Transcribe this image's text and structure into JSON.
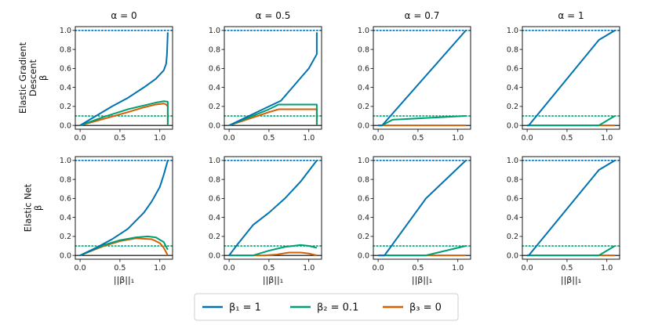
{
  "figure": {
    "col_titles": [
      "α = 0",
      "α = 0.5",
      "α = 0.7",
      "α = 1"
    ],
    "row_labels": [
      {
        "lines": [
          "Elastic Gradient",
          "Descent"
        ],
        "symbol": "β"
      },
      {
        "lines": [
          "Elastic Net"
        ],
        "symbol": "β"
      }
    ],
    "xlabel": "||β||₁",
    "legend": [
      {
        "label": "β₁ = 1",
        "color": "#0072b2"
      },
      {
        "label": "β₂ = 0.1",
        "color": "#009e73"
      },
      {
        "label": "β₃ = 0",
        "color": "#d55e00"
      }
    ],
    "colors": {
      "beta1": "#0072b2",
      "beta2": "#009e73",
      "beta3": "#d55e00"
    }
  },
  "chart_data": [
    {
      "type": "line",
      "row": 0,
      "col": 0,
      "title": "α = 0",
      "ylabel": "β",
      "xlim": [
        -0.06,
        1.16
      ],
      "ylim": [
        -0.04,
        1.04
      ],
      "xticks": [
        0.0,
        0.5,
        1.0
      ],
      "yticks": [
        0.0,
        0.2,
        0.4,
        0.6,
        0.8,
        1.0
      ],
      "hlines": [
        {
          "y": 1.0,
          "style": "dotted",
          "series": 0
        },
        {
          "y": 0.1,
          "style": "dotted",
          "series": 1
        },
        {
          "y": 0.0,
          "style": "solid-black"
        }
      ],
      "series": [
        {
          "name": "β₁",
          "x": [
            0,
            0.2,
            0.4,
            0.6,
            0.8,
            0.95,
            1.05,
            1.08,
            1.09,
            1.1
          ],
          "y": [
            0,
            0.1,
            0.2,
            0.29,
            0.4,
            0.49,
            0.58,
            0.65,
            0.75,
            0.98
          ]
        },
        {
          "name": "β₂",
          "x": [
            0,
            0.3,
            0.6,
            0.8,
            0.95,
            1.05,
            1.1,
            1.1
          ],
          "y": [
            0,
            0.09,
            0.17,
            0.21,
            0.24,
            0.255,
            0.25,
            0
          ]
        },
        {
          "name": "β₃",
          "x": [
            0,
            0.3,
            0.6,
            0.8,
            0.95,
            1.05,
            1.08,
            1.1,
            1.1
          ],
          "y": [
            0,
            0.07,
            0.14,
            0.19,
            0.22,
            0.23,
            0.22,
            0.2,
            0
          ]
        }
      ]
    },
    {
      "type": "line",
      "row": 0,
      "col": 1,
      "title": "α = 0.5",
      "ylabel": "β",
      "xlim": [
        -0.06,
        1.16
      ],
      "ylim": [
        -0.04,
        1.04
      ],
      "xticks": [
        0.0,
        0.5,
        1.0
      ],
      "yticks": [
        0.0,
        0.2,
        0.4,
        0.6,
        0.8,
        1.0
      ],
      "hlines": [
        {
          "y": 1.0,
          "style": "dotted",
          "series": 0
        },
        {
          "y": 0.1,
          "style": "dotted",
          "series": 1
        },
        {
          "y": 0.0,
          "style": "solid-black"
        }
      ],
      "series": [
        {
          "name": "β₁",
          "x": [
            0,
            0.5,
            0.65,
            1.0,
            1.08,
            1.1,
            1.1
          ],
          "y": [
            0,
            0.2,
            0.26,
            0.6,
            0.72,
            0.75,
            0.98
          ]
        },
        {
          "name": "β₂",
          "x": [
            0,
            0.5,
            0.62,
            1.1,
            1.1
          ],
          "y": [
            0,
            0.17,
            0.22,
            0.22,
            0
          ]
        },
        {
          "name": "β₃",
          "x": [
            0,
            0.5,
            0.62,
            1.1,
            1.1
          ],
          "y": [
            0,
            0.14,
            0.17,
            0.17,
            0
          ]
        }
      ]
    },
    {
      "type": "line",
      "row": 0,
      "col": 2,
      "title": "α = 0.7",
      "ylabel": "β",
      "xlim": [
        -0.06,
        1.16
      ],
      "ylim": [
        -0.04,
        1.04
      ],
      "xticks": [
        0.0,
        0.5,
        1.0
      ],
      "yticks": [
        0.0,
        0.2,
        0.4,
        0.6,
        0.8,
        1.0
      ],
      "hlines": [
        {
          "y": 1.0,
          "style": "dotted",
          "series": 0
        },
        {
          "y": 0.1,
          "style": "dotted",
          "series": 1
        },
        {
          "y": 0.0,
          "style": "solid-black"
        }
      ],
      "series": [
        {
          "name": "β₁",
          "x": [
            0,
            0.05,
            1.1
          ],
          "y": [
            0,
            0.0,
            1.0
          ]
        },
        {
          "name": "β₂",
          "x": [
            0,
            0.05,
            0.18,
            1.1
          ],
          "y": [
            0,
            0.0,
            0.06,
            0.1
          ]
        },
        {
          "name": "β₃",
          "x": [
            0,
            1.1
          ],
          "y": [
            0,
            0
          ]
        }
      ]
    },
    {
      "type": "line",
      "row": 0,
      "col": 3,
      "title": "α = 1",
      "ylabel": "β",
      "xlim": [
        -0.06,
        1.16
      ],
      "ylim": [
        -0.04,
        1.04
      ],
      "xticks": [
        0.0,
        0.5,
        1.0
      ],
      "yticks": [
        0.0,
        0.2,
        0.4,
        0.6,
        0.8,
        1.0
      ],
      "hlines": [
        {
          "y": 1.0,
          "style": "dotted",
          "series": 0
        },
        {
          "y": 0.1,
          "style": "dotted",
          "series": 1
        },
        {
          "y": 0.0,
          "style": "solid-black"
        }
      ],
      "series": [
        {
          "name": "β₁",
          "x": [
            0,
            0.02,
            0.9,
            1.1
          ],
          "y": [
            0,
            0.0,
            0.9,
            1.0
          ]
        },
        {
          "name": "β₂",
          "x": [
            0,
            0.9,
            1.1
          ],
          "y": [
            0,
            0.0,
            0.1
          ]
        },
        {
          "name": "β₃",
          "x": [
            0,
            1.1
          ],
          "y": [
            0,
            0
          ]
        }
      ]
    },
    {
      "type": "line",
      "row": 1,
      "col": 0,
      "title": "",
      "ylabel": "β",
      "xlim": [
        -0.06,
        1.16
      ],
      "ylim": [
        -0.04,
        1.04
      ],
      "xticks": [
        0.0,
        0.5,
        1.0
      ],
      "yticks": [
        0.0,
        0.2,
        0.4,
        0.6,
        0.8,
        1.0
      ],
      "hlines": [
        {
          "y": 1.0,
          "style": "dotted",
          "series": 0
        },
        {
          "y": 0.1,
          "style": "dotted",
          "series": 1
        },
        {
          "y": 0.0,
          "style": "solid-black"
        }
      ],
      "series": [
        {
          "name": "β₁",
          "x": [
            0,
            0.2,
            0.4,
            0.6,
            0.8,
            0.9,
            1.0,
            1.05,
            1.1
          ],
          "y": [
            0,
            0.08,
            0.17,
            0.28,
            0.45,
            0.57,
            0.72,
            0.85,
            1.0
          ]
        },
        {
          "name": "β₂",
          "x": [
            0,
            0.3,
            0.5,
            0.7,
            0.85,
            0.95,
            1.05,
            1.1
          ],
          "y": [
            0,
            0.11,
            0.16,
            0.19,
            0.2,
            0.19,
            0.14,
            0.06
          ]
        },
        {
          "name": "β₃",
          "x": [
            0,
            0.3,
            0.5,
            0.7,
            0.9,
            1.0,
            1.05,
            1.1
          ],
          "y": [
            0,
            0.1,
            0.15,
            0.18,
            0.17,
            0.13,
            0.08,
            0.0
          ]
        }
      ]
    },
    {
      "type": "line",
      "row": 1,
      "col": 1,
      "title": "",
      "ylabel": "β",
      "xlim": [
        -0.06,
        1.16
      ],
      "ylim": [
        -0.04,
        1.04
      ],
      "xticks": [
        0.0,
        0.5,
        1.0
      ],
      "yticks": [
        0.0,
        0.2,
        0.4,
        0.6,
        0.8,
        1.0
      ],
      "hlines": [
        {
          "y": 1.0,
          "style": "dotted",
          "series": 0
        },
        {
          "y": 0.1,
          "style": "dotted",
          "series": 1
        },
        {
          "y": 0.0,
          "style": "solid-black"
        }
      ],
      "series": [
        {
          "name": "β₁",
          "x": [
            0,
            0.1,
            0.3,
            0.5,
            0.7,
            0.9,
            1.1
          ],
          "y": [
            0,
            0.11,
            0.32,
            0.45,
            0.6,
            0.78,
            1.0
          ]
        },
        {
          "name": "β₂",
          "x": [
            0,
            0.3,
            0.5,
            0.7,
            0.9,
            1.0,
            1.1
          ],
          "y": [
            0,
            0.0,
            0.05,
            0.09,
            0.11,
            0.1,
            0.08
          ]
        },
        {
          "name": "β₃",
          "x": [
            0,
            0.45,
            0.6,
            0.75,
            0.9,
            1.0,
            1.1
          ],
          "y": [
            0,
            0.0,
            0.01,
            0.03,
            0.03,
            0.02,
            0.0
          ]
        }
      ]
    },
    {
      "type": "line",
      "row": 1,
      "col": 2,
      "title": "",
      "ylabel": "β",
      "xlim": [
        -0.06,
        1.16
      ],
      "ylim": [
        -0.04,
        1.04
      ],
      "xticks": [
        0.0,
        0.5,
        1.0
      ],
      "yticks": [
        0.0,
        0.2,
        0.4,
        0.6,
        0.8,
        1.0
      ],
      "hlines": [
        {
          "y": 1.0,
          "style": "dotted",
          "series": 0
        },
        {
          "y": 0.1,
          "style": "dotted",
          "series": 1
        },
        {
          "y": 0.0,
          "style": "solid-black"
        }
      ],
      "series": [
        {
          "name": "β₁",
          "x": [
            0,
            0.08,
            0.6,
            1.1
          ],
          "y": [
            0,
            0.0,
            0.6,
            1.0
          ]
        },
        {
          "name": "β₂",
          "x": [
            0,
            0.6,
            1.1
          ],
          "y": [
            0,
            0.0,
            0.1
          ]
        },
        {
          "name": "β₃",
          "x": [
            0,
            1.1
          ],
          "y": [
            0,
            0
          ]
        }
      ]
    },
    {
      "type": "line",
      "row": 1,
      "col": 3,
      "title": "",
      "ylabel": "β",
      "xlim": [
        -0.06,
        1.16
      ],
      "ylim": [
        -0.04,
        1.04
      ],
      "xticks": [
        0.0,
        0.5,
        1.0
      ],
      "yticks": [
        0.0,
        0.2,
        0.4,
        0.6,
        0.8,
        1.0
      ],
      "hlines": [
        {
          "y": 1.0,
          "style": "dotted",
          "series": 0
        },
        {
          "y": 0.1,
          "style": "dotted",
          "series": 1
        },
        {
          "y": 0.0,
          "style": "solid-black"
        }
      ],
      "series": [
        {
          "name": "β₁",
          "x": [
            0,
            0.02,
            0.9,
            1.1
          ],
          "y": [
            0,
            0.0,
            0.9,
            1.0
          ]
        },
        {
          "name": "β₂",
          "x": [
            0,
            0.9,
            1.1
          ],
          "y": [
            0,
            0.0,
            0.1
          ]
        },
        {
          "name": "β₃",
          "x": [
            0,
            1.1
          ],
          "y": [
            0,
            0
          ]
        }
      ]
    }
  ]
}
